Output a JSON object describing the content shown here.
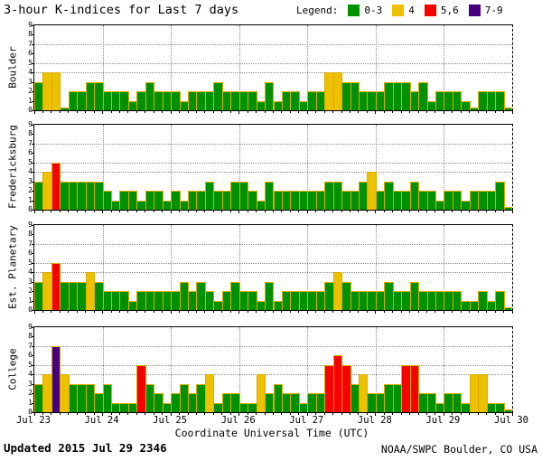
{
  "header": {
    "title": "3-hour K-indices for Last 7 days"
  },
  "legend": {
    "label": "Legend:",
    "items": [
      {
        "label": "0-3",
        "color": "#009100"
      },
      {
        "label": "4",
        "color": "#edc000"
      },
      {
        "label": "5,6",
        "color": "#f70000"
      },
      {
        "label": "7-9",
        "color": "#470082"
      }
    ]
  },
  "chart_data": {
    "type": "bar",
    "title": "3-hour K-indices for Last 7 days",
    "xlabel": "Coordinate Universal Time (UTC)",
    "x_categories": [
      "Jul 23",
      "Jul 24",
      "Jul 25",
      "Jul 26",
      "Jul 27",
      "Jul 28",
      "Jul 29",
      "Jul 30"
    ],
    "bars_per_day": 8,
    "ylim": [
      0,
      9
    ],
    "yticks": [
      0,
      1,
      2,
      3,
      4,
      5,
      6,
      7,
      8,
      9
    ],
    "dotted_hlines": [
      4,
      5,
      7
    ],
    "grid": "dotted day boundaries vertical, K=4,5,7 horizontal",
    "legend_position": "top-right",
    "colors": {
      "green": "#009100",
      "yellow": "#edc000",
      "red": "#f70000",
      "purple": "#470082",
      "bar_outline": "#d9ac00"
    },
    "color_rule": "0-3 green, 4 yellow, 5-6 red, 7-9 purple",
    "series": [
      {
        "name": "Boulder",
        "values": [
          3,
          4,
          4,
          0,
          2,
          2,
          3,
          3,
          2,
          2,
          2,
          1,
          2,
          3,
          2,
          2,
          2,
          1,
          2,
          2,
          2,
          3,
          2,
          2,
          2,
          2,
          1,
          3,
          1,
          2,
          2,
          1,
          2,
          2,
          4,
          4,
          3,
          3,
          2,
          2,
          2,
          3,
          3,
          3,
          2,
          3,
          1,
          2,
          2,
          2,
          1,
          0,
          2,
          2,
          2,
          0
        ]
      },
      {
        "name": "Fredericksburg",
        "values": [
          3,
          4,
          5,
          3,
          3,
          3,
          3,
          3,
          2,
          1,
          2,
          2,
          1,
          2,
          2,
          1,
          2,
          1,
          2,
          2,
          3,
          2,
          2,
          3,
          3,
          2,
          1,
          3,
          2,
          2,
          2,
          2,
          2,
          2,
          3,
          3,
          2,
          2,
          3,
          4,
          2,
          3,
          2,
          2,
          3,
          2,
          2,
          1,
          2,
          2,
          1,
          2,
          2,
          2,
          3,
          0
        ]
      },
      {
        "name": "Est. Planetary",
        "values": [
          3,
          4,
          5,
          3,
          3,
          3,
          4,
          3,
          2,
          2,
          2,
          1,
          2,
          2,
          2,
          2,
          2,
          3,
          2,
          3,
          2,
          1,
          2,
          3,
          2,
          2,
          1,
          3,
          1,
          2,
          2,
          2,
          2,
          2,
          3,
          4,
          3,
          2,
          2,
          2,
          2,
          3,
          2,
          2,
          3,
          2,
          2,
          2,
          2,
          2,
          1,
          1,
          2,
          1,
          2,
          0
        ]
      },
      {
        "name": "College",
        "values": [
          3,
          4,
          7,
          4,
          3,
          3,
          3,
          2,
          3,
          1,
          1,
          1,
          5,
          3,
          2,
          1,
          2,
          3,
          2,
          3,
          4,
          1,
          2,
          2,
          1,
          1,
          4,
          2,
          3,
          2,
          2,
          1,
          2,
          2,
          5,
          6,
          5,
          3,
          4,
          2,
          2,
          3,
          3,
          5,
          5,
          2,
          2,
          1,
          2,
          2,
          1,
          4,
          4,
          1,
          1,
          0
        ]
      }
    ]
  },
  "footer": {
    "updated": "Updated 2015 Jul 29 2346",
    "source": "NOAA/SWPC Boulder, CO USA"
  }
}
